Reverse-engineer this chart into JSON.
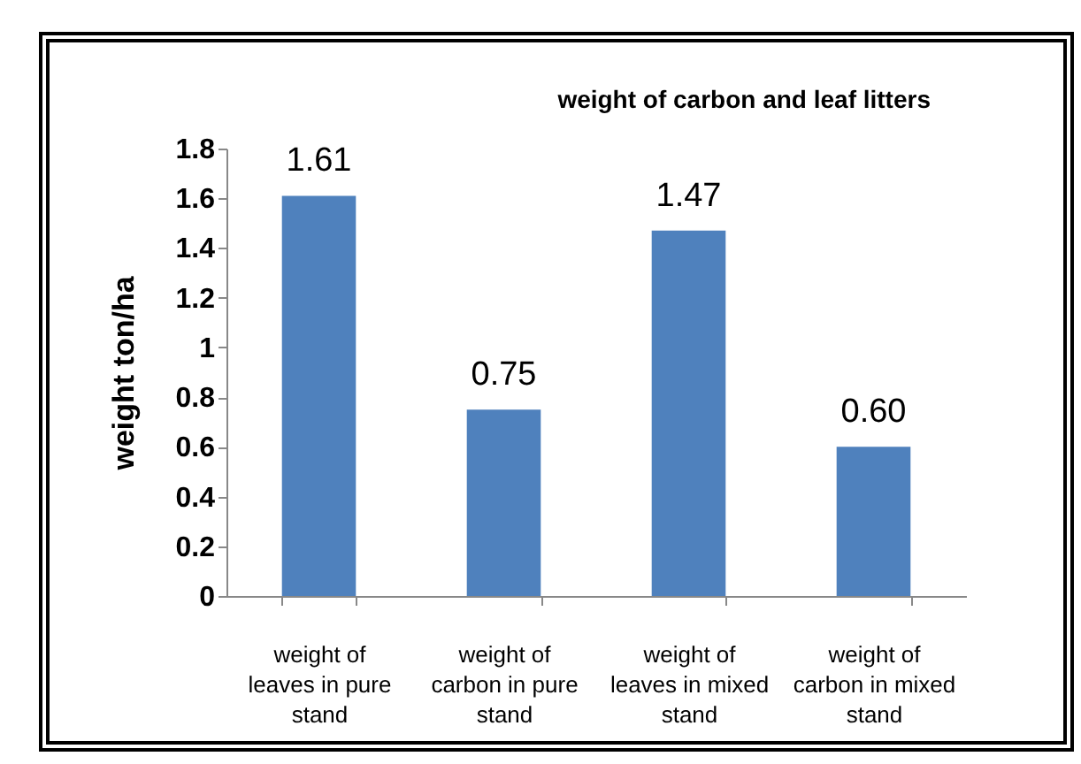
{
  "chart_data": {
    "type": "bar",
    "title": "weight of carbon and leaf litters",
    "ylabel": "weight  ton/ha",
    "categories": [
      "weight of leaves in pure stand",
      "weight of carbon in pure stand",
      "weight of leaves in mixed stand",
      "weight of carbon in mixed stand"
    ],
    "values": [
      1.61,
      0.75,
      1.47,
      0.6
    ],
    "value_labels": [
      "1.61",
      "0.75",
      "1.47",
      "0.60"
    ],
    "color": "#4f81bd",
    "ylim": [
      0,
      1.8
    ],
    "yticks": [
      0,
      0.2,
      0.4,
      0.6,
      0.8,
      1,
      1.2,
      1.4,
      1.6,
      1.8
    ],
    "grid": false
  }
}
